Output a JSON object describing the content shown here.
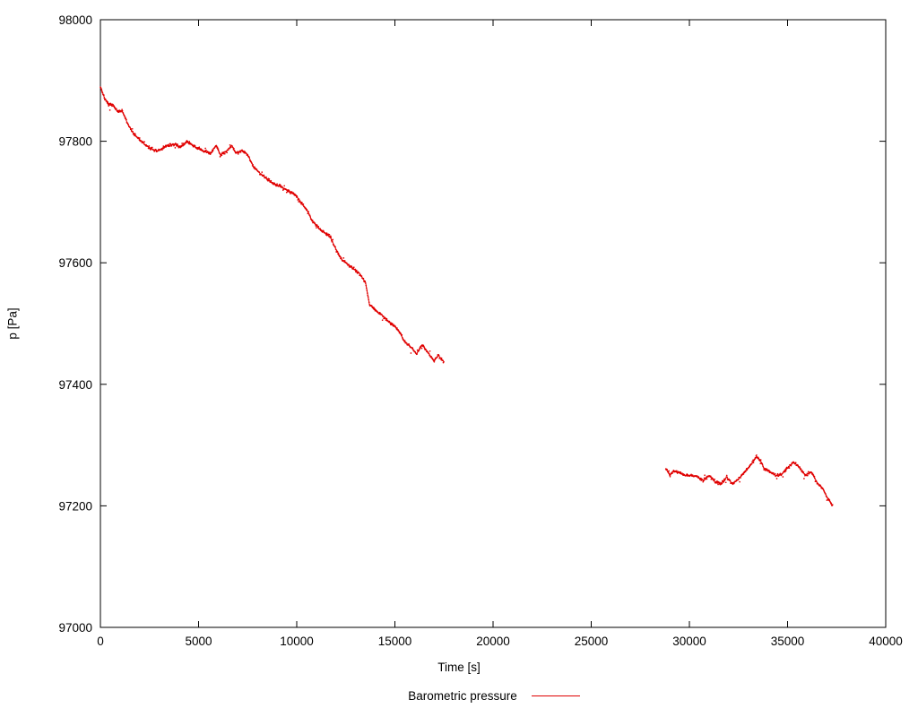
{
  "chart_data": {
    "type": "scatter",
    "title": "",
    "xlabel": "Time [s]",
    "ylabel": "p [Pa]",
    "legend_label": "Barometric pressure",
    "legend_position": "bottom-center",
    "grid": false,
    "xlim": [
      0,
      40000
    ],
    "ylim": [
      97000,
      98000
    ],
    "xticks": [
      0,
      5000,
      10000,
      15000,
      20000,
      25000,
      30000,
      35000,
      40000
    ],
    "yticks": [
      97000,
      97200,
      97400,
      97600,
      97800,
      98000
    ],
    "series": [
      {
        "name": "Barometric pressure",
        "color": "#e00000",
        "style": "dense-points",
        "segments": [
          [
            [
              0,
              97890
            ],
            [
              200,
              97872
            ],
            [
              400,
              97860
            ],
            [
              700,
              97858
            ],
            [
              900,
              97848
            ],
            [
              1100,
              97850
            ],
            [
              1400,
              97828
            ],
            [
              1700,
              97812
            ],
            [
              2000,
              97803
            ],
            [
              2300,
              97793
            ],
            [
              2600,
              97788
            ],
            [
              2900,
              97783
            ],
            [
              3200,
              97790
            ],
            [
              3500,
              97793
            ],
            [
              3800,
              97795
            ],
            [
              4100,
              97790
            ],
            [
              4400,
              97800
            ],
            [
              4700,
              97793
            ],
            [
              5000,
              97788
            ],
            [
              5300,
              97783
            ],
            [
              5600,
              97780
            ],
            [
              5900,
              97793
            ],
            [
              6100,
              97778
            ],
            [
              6400,
              97783
            ],
            [
              6700,
              97793
            ],
            [
              6900,
              97780
            ],
            [
              7200,
              97785
            ],
            [
              7500,
              97778
            ],
            [
              7800,
              97758
            ],
            [
              8100,
              97748
            ],
            [
              8400,
              97740
            ],
            [
              8700,
              97733
            ],
            [
              9000,
              97728
            ],
            [
              9300,
              97723
            ],
            [
              9600,
              97718
            ],
            [
              9900,
              97713
            ],
            [
              10200,
              97700
            ],
            [
              10500,
              97688
            ],
            [
              10800,
              97668
            ],
            [
              11100,
              97658
            ],
            [
              11400,
              97650
            ],
            [
              11700,
              97643
            ],
            [
              12000,
              97622
            ],
            [
              12300,
              97605
            ],
            [
              12600,
              97598
            ],
            [
              12900,
              97590
            ],
            [
              13200,
              97582
            ],
            [
              13500,
              97568
            ],
            [
              13700,
              97532
            ],
            [
              14000,
              97522
            ],
            [
              14300,
              97515
            ],
            [
              14600,
              97505
            ],
            [
              14900,
              97498
            ],
            [
              15200,
              97488
            ],
            [
              15500,
              97470
            ],
            [
              15800,
              97462
            ],
            [
              16100,
              97450
            ],
            [
              16400,
              97465
            ],
            [
              16700,
              97452
            ],
            [
              17000,
              97438
            ],
            [
              17200,
              97448
            ],
            [
              17500,
              97437
            ]
          ],
          [
            [
              28800,
              97262
            ],
            [
              29000,
              97250
            ],
            [
              29200,
              97258
            ],
            [
              29500,
              97254
            ],
            [
              29800,
              97250
            ],
            [
              30100,
              97250
            ],
            [
              30400,
              97248
            ],
            [
              30700,
              97242
            ],
            [
              31000,
              97250
            ],
            [
              31300,
              97240
            ],
            [
              31600,
              97237
            ],
            [
              31900,
              97247
            ],
            [
              32200,
              97236
            ],
            [
              32500,
              97244
            ],
            [
              32800,
              97256
            ],
            [
              33100,
              97266
            ],
            [
              33400,
              97280
            ],
            [
              33600,
              97276
            ],
            [
              33800,
              97262
            ],
            [
              34100,
              97256
            ],
            [
              34400,
              97250
            ],
            [
              34700,
              97252
            ],
            [
              35000,
              97262
            ],
            [
              35300,
              97272
            ],
            [
              35600,
              97264
            ],
            [
              35900,
              97250
            ],
            [
              36200,
              97256
            ],
            [
              36500,
              97238
            ],
            [
              36800,
              97228
            ],
            [
              37000,
              97215
            ],
            [
              37300,
              97200
            ]
          ]
        ]
      }
    ]
  }
}
